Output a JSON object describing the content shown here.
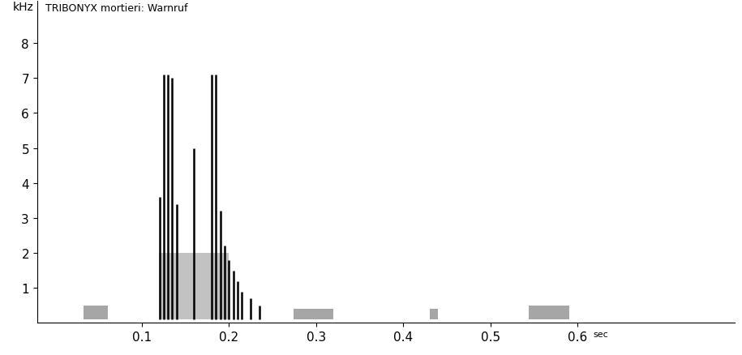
{
  "chart_data": {
    "type": "spectrogram",
    "title": "TRIBONYX mortieri: Warnruf",
    "x_label": "sec",
    "y_label": "kHz",
    "xlim": [
      -0.02,
      0.78
    ],
    "ylim": [
      0,
      9.2
    ],
    "xticks": [
      0.1,
      0.2,
      0.3,
      0.4,
      0.5,
      0.6
    ],
    "yticks": [
      1,
      2,
      3,
      4,
      5,
      6,
      7,
      8
    ],
    "color": "#000000",
    "strokes": [
      {
        "t": 0.121,
        "f_min": 0.1,
        "f_max": 3.6
      },
      {
        "t": 0.125,
        "f_min": 0.1,
        "f_max": 7.1
      },
      {
        "t": 0.13,
        "f_min": 0.1,
        "f_max": 7.1
      },
      {
        "t": 0.135,
        "f_min": 0.1,
        "f_max": 7.0
      },
      {
        "t": 0.14,
        "f_min": 0.1,
        "f_max": 3.4
      },
      {
        "t": 0.16,
        "f_min": 0.1,
        "f_max": 5.0
      },
      {
        "t": 0.18,
        "f_min": 0.1,
        "f_max": 7.1
      },
      {
        "t": 0.185,
        "f_min": 0.1,
        "f_max": 7.1
      },
      {
        "t": 0.19,
        "f_min": 0.1,
        "f_max": 3.2
      },
      {
        "t": 0.195,
        "f_min": 0.1,
        "f_max": 2.2
      },
      {
        "t": 0.2,
        "f_min": 0.1,
        "f_max": 1.8
      },
      {
        "t": 0.205,
        "f_min": 0.1,
        "f_max": 1.5
      },
      {
        "t": 0.21,
        "f_min": 0.1,
        "f_max": 1.2
      },
      {
        "t": 0.215,
        "f_min": 0.1,
        "f_max": 0.9
      },
      {
        "t": 0.225,
        "f_min": 0.1,
        "f_max": 0.7
      },
      {
        "t": 0.235,
        "f_min": 0.1,
        "f_max": 0.5
      }
    ],
    "shaded": [
      {
        "t_start": 0.12,
        "t_end": 0.2,
        "f_min": 0.1,
        "f_max": 2.0
      }
    ],
    "noise": [
      {
        "t_start": 0.033,
        "t_end": 0.061,
        "f_min": 0.1,
        "f_max": 0.5
      },
      {
        "t_start": 0.274,
        "t_end": 0.32,
        "f_min": 0.1,
        "f_max": 0.4
      },
      {
        "t_start": 0.43,
        "t_end": 0.44,
        "f_min": 0.1,
        "f_max": 0.4
      },
      {
        "t_start": 0.544,
        "t_end": 0.59,
        "f_min": 0.1,
        "f_max": 0.5
      }
    ]
  }
}
